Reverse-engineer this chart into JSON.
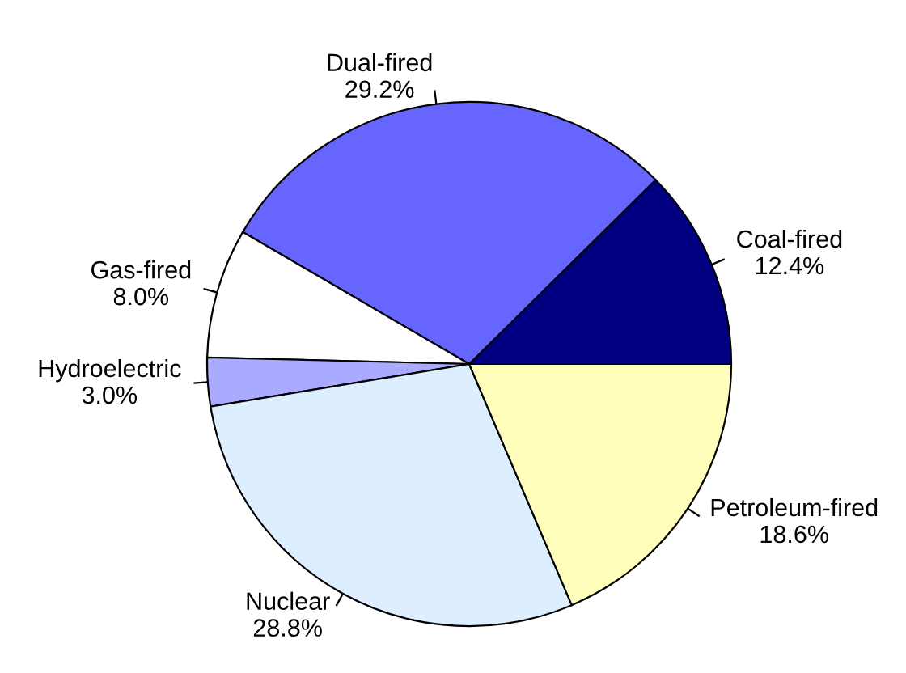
{
  "chart_data": {
    "type": "pie",
    "categories": [
      "Coal-fired",
      "Dual-fired",
      "Gas-fired",
      "Hydroelectric",
      "Nuclear",
      "Petroleum-fired"
    ],
    "values": [
      12.4,
      29.2,
      8.0,
      3.0,
      28.8,
      18.6
    ],
    "value_labels": [
      "12.4%",
      "29.2%",
      "8.0%",
      "3.0%",
      "28.8%",
      "18.6%"
    ],
    "colors": [
      "#000080",
      "#6666ff",
      "#ffffff",
      "#aaaaff",
      "#ddeeff",
      "#ffffbb"
    ],
    "legend": false
  }
}
